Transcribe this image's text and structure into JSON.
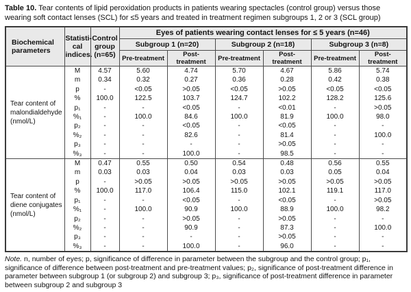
{
  "title": {
    "label": "Table 10.",
    "text": " Tear contents of lipid peroxidation products in patients wearing spectacles (control group) versus those wearing soft contact lenses (SCL) for ≤5 years and treated in treatment regimen subgroups 1, 2 or 3 (SCL group)"
  },
  "table": {
    "header": {
      "biochemical": "Biochemical\nparameters",
      "statistical": "Statisti-\ncal\nindices.",
      "control": "Control\ngroup\n(n=65)",
      "span": "Eyes of patients wearing contact lenses for ≤ 5 years (n=46)",
      "subgroups": [
        "Subgroup 1 (n=20)",
        "Subgroup 2 (n=18)",
        "Subgroup 3 (n=8)"
      ],
      "pre": "Pre-treatment",
      "post": "Post-treatment"
    },
    "sections": [
      {
        "label": "Tear content of\nmalondialdehyde\n(nmol/L)",
        "rows": [
          {
            "index": "M",
            "values": [
              "4.57",
              "5.60",
              "4.74",
              "5.70",
              "4.67",
              "5.86",
              "5.74"
            ]
          },
          {
            "index": "m",
            "values": [
              "0.34",
              "0.32",
              "0.27",
              "0.36",
              "0.28",
              "0.42",
              "0.38"
            ]
          },
          {
            "index": "p",
            "values": [
              "-",
              "<0.05",
              ">0.05",
              "<0.05",
              ">0.05",
              "<0.05",
              "<0.05"
            ]
          },
          {
            "index": "%",
            "values": [
              "100.0",
              "122.5",
              "103.7",
              "124.7",
              "102.2",
              "128.2",
              "125.6"
            ]
          },
          {
            "index": "p₁",
            "values": [
              "-",
              "-",
              "<0.05",
              "-",
              "<0.01",
              "-",
              ">0.05"
            ]
          },
          {
            "index": "%₁",
            "values": [
              "-",
              "100.0",
              "84.6",
              "100.0",
              "81.9",
              "100.0",
              "98.0"
            ]
          },
          {
            "index": "p₂",
            "values": [
              "-",
              "-",
              "<0.05",
              "-",
              "<0.05",
              "-",
              "-"
            ]
          },
          {
            "index": "%₂",
            "values": [
              "-",
              "-",
              "82.6",
              "-",
              "81.4",
              "-",
              "100.0"
            ]
          },
          {
            "index": "p₃",
            "values": [
              "-",
              "-",
              "-",
              "-",
              ">0.05",
              "-",
              "-"
            ]
          },
          {
            "index": "%₃",
            "values": [
              "-",
              "-",
              "100.0",
              "-",
              "98.5",
              "-",
              "-"
            ]
          }
        ]
      },
      {
        "label": "Tear content of\ndiene conjugates\n(nmol/L)",
        "rows": [
          {
            "index": "M",
            "values": [
              "0.47",
              "0.55",
              "0.50",
              "0.54",
              "0.48",
              "0.56",
              "0.55"
            ]
          },
          {
            "index": "m",
            "values": [
              "0.03",
              "0.03",
              "0.04",
              "0.03",
              "0.03",
              "0.05",
              "0.04"
            ]
          },
          {
            "index": "p",
            "values": [
              "-",
              ">0.05",
              ">0.05",
              ">0.05",
              ">0.05",
              ">0.05",
              ">0.05"
            ]
          },
          {
            "index": "%",
            "values": [
              "100.0",
              "117.0",
              "106.4",
              "115.0",
              "102.1",
              "119.1",
              "117.0"
            ]
          },
          {
            "index": "p₁",
            "values": [
              "-",
              "-",
              "<0.05",
              "-",
              "<0.05",
              "-",
              ">0.05"
            ]
          },
          {
            "index": "%₁",
            "values": [
              "-",
              "100.0",
              "90.9",
              "100.0",
              "88.9",
              "100.0",
              "98.2"
            ]
          },
          {
            "index": "p₂",
            "values": [
              "-",
              "-",
              ">0.05",
              "-",
              ">0.05",
              "-",
              "-"
            ]
          },
          {
            "index": "%₂",
            "values": [
              "-",
              "-",
              "90.9",
              "-",
              "87.3",
              "-",
              "100.0"
            ]
          },
          {
            "index": "p₃",
            "values": [
              "-",
              "-",
              "-",
              "-",
              ">0.05",
              "-",
              "-"
            ]
          },
          {
            "index": "%₃",
            "values": [
              "-",
              "-",
              "100.0",
              "-",
              "96.0",
              "-",
              "-"
            ]
          }
        ]
      }
    ]
  },
  "note": {
    "prefix": "Note.",
    "body": " n, number of eyes; p, significance of difference in parameter between the subgroup and the control group; p₁, significance of difference between post-treatment and pre-treatment values; p₂, significance of post-treatment difference in parameter between subgroup 1 (or subgroup 2) and subgroup 3;  p₃, significance of post-treatment difference in parameter between subgroup 2 and subgroup 3"
  },
  "colors": {
    "header_bg": "#e9e9e9",
    "border": "#4a4a4a",
    "text": "#111111",
    "page_bg": "#ffffff"
  }
}
